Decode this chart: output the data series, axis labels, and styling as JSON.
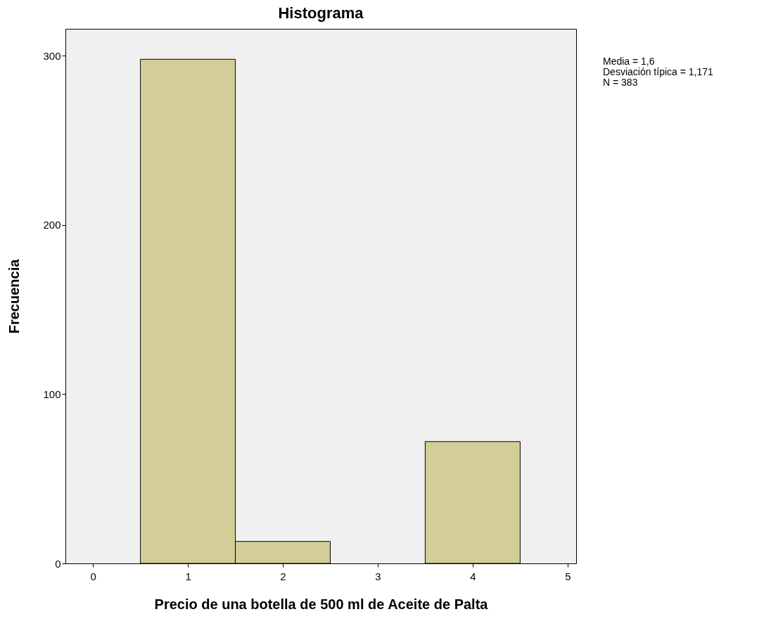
{
  "chart_data": {
    "type": "histogram",
    "title": "Histograma",
    "xlabel": "Precio de una botella de 500 ml de Aceite de Palta",
    "ylabel": "Frecuencia",
    "bins": [
      0.5,
      1.5,
      2.5,
      3.5,
      4.5
    ],
    "values": [
      298,
      13,
      0,
      72
    ],
    "color": "#d3ce97",
    "xlim": [
      -0.29,
      5.09
    ],
    "xticks": [
      0,
      1,
      2,
      3,
      4,
      5
    ],
    "ylim": [
      0,
      316
    ],
    "yticks": [
      0,
      100,
      200,
      300
    ],
    "grid": false,
    "annotations": [
      "Media = 1,6",
      "Desviación típica = 1,171",
      "N = 383"
    ]
  }
}
